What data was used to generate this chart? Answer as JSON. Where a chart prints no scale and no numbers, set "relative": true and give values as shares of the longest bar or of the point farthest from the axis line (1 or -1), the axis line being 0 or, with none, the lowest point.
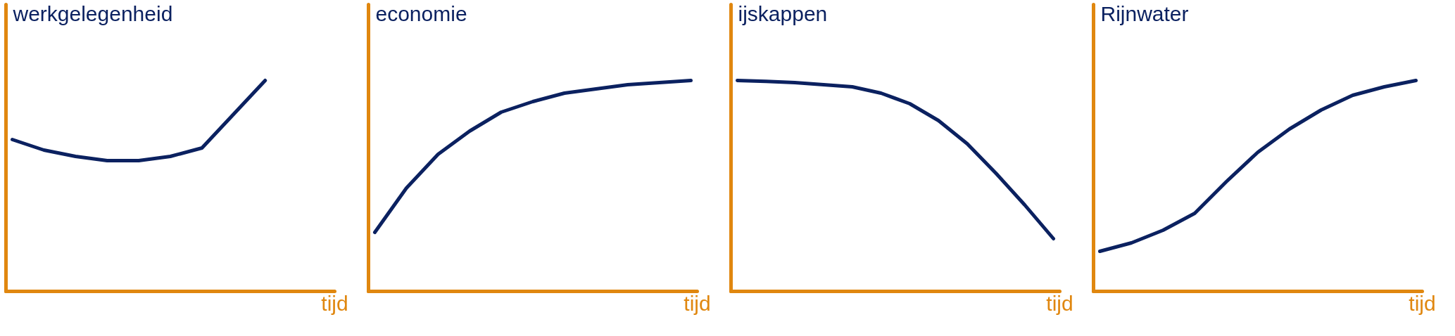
{
  "chart_data": [
    {
      "type": "line",
      "title": "werkgelegenheid",
      "xlabel": "tijd",
      "relative": true,
      "categories": [
        null,
        null,
        null,
        null,
        null,
        null,
        null,
        null,
        null,
        null,
        null
      ],
      "series": [
        {
          "color": "#0b2160",
          "values": [
            0.72,
            0.67,
            0.64,
            0.62,
            0.62,
            0.64,
            0.68,
            0.84,
            1.0,
            null,
            null
          ]
        }
      ]
    },
    {
      "type": "line",
      "title": "economie",
      "xlabel": "tijd",
      "relative": true,
      "categories": [
        null,
        null,
        null,
        null,
        null,
        null,
        null,
        null,
        null,
        null,
        null
      ],
      "series": [
        {
          "color": "#0b2160",
          "values": [
            0.28,
            0.49,
            0.65,
            0.76,
            0.85,
            0.9,
            0.94,
            0.96,
            0.98,
            0.99,
            1.0
          ]
        }
      ]
    },
    {
      "type": "line",
      "title": "ijskappen",
      "xlabel": "tijd",
      "relative": true,
      "categories": [
        null,
        null,
        null,
        null,
        null,
        null,
        null,
        null,
        null,
        null,
        null,
        null
      ],
      "series": [
        {
          "color": "#0b2160",
          "values": [
            1.0,
            0.996,
            0.99,
            0.98,
            0.97,
            0.94,
            0.89,
            0.81,
            0.7,
            0.56,
            0.41,
            0.25
          ]
        }
      ]
    },
    {
      "type": "line",
      "title": "Rijnwater",
      "xlabel": "tijd",
      "relative": true,
      "categories": [
        null,
        null,
        null,
        null,
        null,
        null,
        null,
        null,
        null,
        null,
        null
      ],
      "series": [
        {
          "color": "#0b2160",
          "values": [
            0.19,
            0.23,
            0.29,
            0.37,
            0.52,
            0.66,
            0.77,
            0.86,
            0.93,
            0.97,
            1.0
          ]
        }
      ]
    }
  ]
}
